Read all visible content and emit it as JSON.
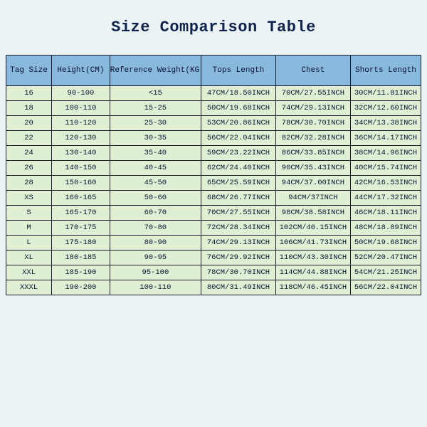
{
  "title": "Size Comparison Table",
  "table": {
    "type": "table",
    "header_bg": "#8ab9de",
    "row_bg": "#dfefd4",
    "border_color": "#1a1a2e",
    "page_bg": "#ecf3f5",
    "font_family": "Courier New",
    "columns": [
      "Tag Size",
      "Height(CM)",
      "Reference Weight(KG)",
      "Tops Length",
      "Chest",
      "Shorts Length"
    ],
    "rows": [
      [
        "16",
        "90-100",
        "<15",
        "47CM/18.50INCH",
        "70CM/27.55INCH",
        "30CM/11.81INCH"
      ],
      [
        "18",
        "100-110",
        "15-25",
        "50CM/19.68INCH",
        "74CM/29.13INCH",
        "32CM/12.60INCH"
      ],
      [
        "20",
        "110-120",
        "25-30",
        "53CM/20.86INCH",
        "78CM/30.70INCH",
        "34CM/13.38INCH"
      ],
      [
        "22",
        "120-130",
        "30-35",
        "56CM/22.04INCH",
        "82CM/32.28INCH",
        "36CM/14.17INCH"
      ],
      [
        "24",
        "130-140",
        "35-40",
        "59CM/23.22INCH",
        "86CM/33.85INCH",
        "38CM/14.96INCH"
      ],
      [
        "26",
        "140-150",
        "40-45",
        "62CM/24.40INCH",
        "90CM/35.43INCH",
        "40CM/15.74INCH"
      ],
      [
        "28",
        "150-160",
        "45-50",
        "65CM/25.59INCH",
        "94CM/37.00INCH",
        "42CM/16.53INCH"
      ],
      [
        "XS",
        "160-165",
        "50-60",
        "68CM/26.77INCH",
        "94CM/37INCH",
        "44CM/17.32INCH"
      ],
      [
        "S",
        "165-170",
        "60-70",
        "70CM/27.55INCH",
        "98CM/38.58INCH",
        "46CM/18.11INCH"
      ],
      [
        "M",
        "170-175",
        "70-80",
        "72CM/28.34INCH",
        "102CM/40.15INCH",
        "48CM/18.89INCH"
      ],
      [
        "L",
        "175-180",
        "80-90",
        "74CM/29.13INCH",
        "106CM/41.73INCH",
        "50CM/19.68INCH"
      ],
      [
        "XL",
        "180-185",
        "90-95",
        "76CM/29.92INCH",
        "110CM/43.30INCH",
        "52CM/20.47INCH"
      ],
      [
        "XXL",
        "185-190",
        "95-100",
        "78CM/30.70INCH",
        "114CM/44.88INCH",
        "54CM/21.25INCH"
      ],
      [
        "XXXL",
        "190-200",
        "100-110",
        "80CM/31.49INCH",
        "118CM/46.45INCH",
        "56CM/22.04INCH"
      ]
    ]
  }
}
